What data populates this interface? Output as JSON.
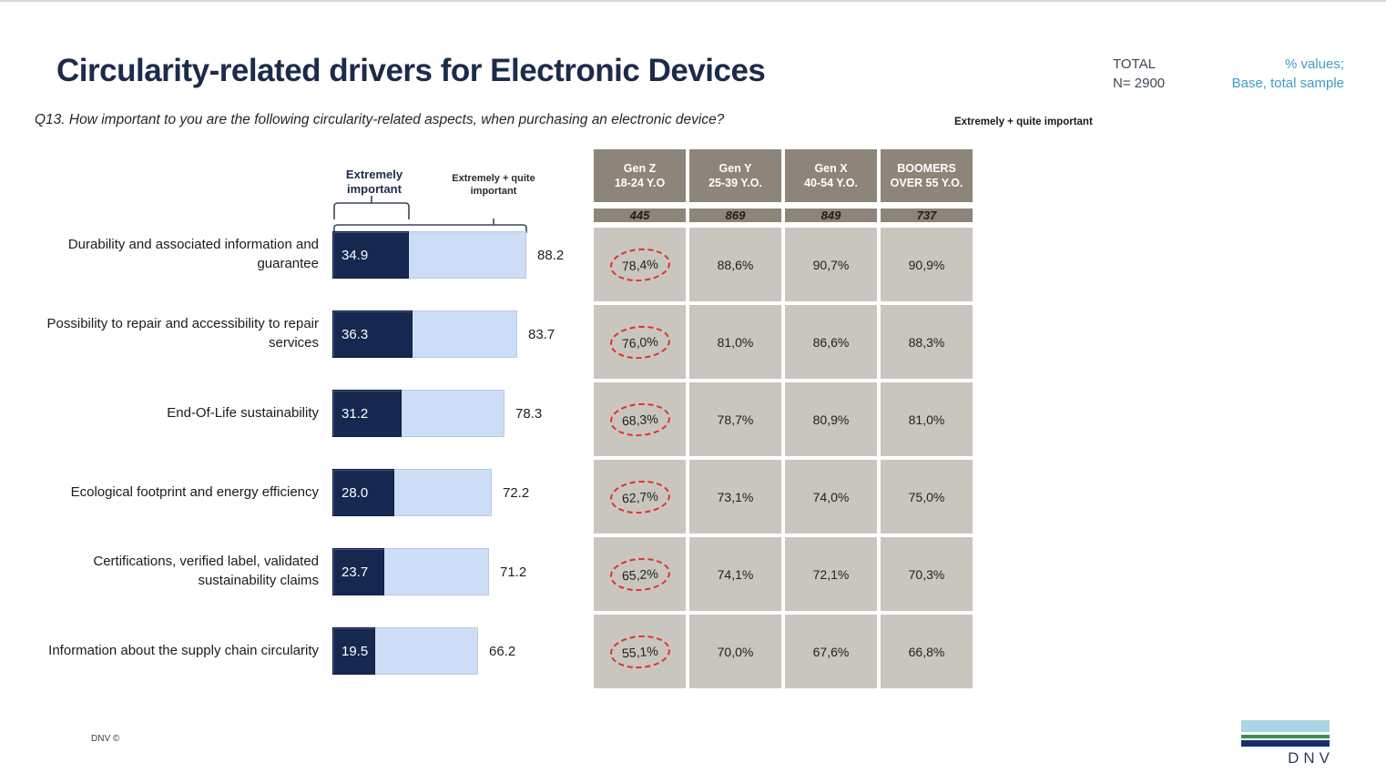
{
  "header": {
    "title": "Circularity-related drivers for Electronic Devices",
    "question": "Q13. How important to you are the following circularity-related aspects, when purchasing an electronic device?",
    "total_label": "TOTAL",
    "total_n": "N= 2900",
    "note_line1": "% values;",
    "note_line2": "Base, total sample"
  },
  "legend": {
    "extremely_label": "Extremely important",
    "extremely_quite_label": "Extremely + quite important"
  },
  "table_caption": "Extremely + quite important",
  "chart_data": {
    "type": "bar",
    "orientation": "horizontal",
    "title": "Circularity-related drivers for Electronic Devices",
    "categories": [
      "Durability and associated information and guarantee",
      "Possibility to repair and accessibility to repair services",
      "End-Of-Life sustainability",
      "Ecological footprint and energy efficiency",
      "Certifications, verified label, validated sustainability claims",
      "Information about the supply chain circularity"
    ],
    "series": [
      {
        "name": "Extremely important",
        "values": [
          34.9,
          36.3,
          31.2,
          28.0,
          23.7,
          19.5
        ],
        "display": [
          "34.9",
          "36.3",
          "31.2",
          "28.0",
          "23.7",
          "19.5"
        ],
        "color": "#162850"
      },
      {
        "name": "Extremely + quite important",
        "values": [
          88.2,
          83.7,
          78.3,
          72.2,
          71.2,
          66.2
        ],
        "display": [
          "88.2",
          "83.7",
          "78.3",
          "72.2",
          "71.2",
          "66.2"
        ],
        "color": "#cdddf6"
      }
    ],
    "xlim": [
      0,
      100
    ],
    "grid": false,
    "legend_position": "top"
  },
  "gen_table": {
    "columns": [
      {
        "name": "Gen Z",
        "age": "18-24 Y.O",
        "base": "445"
      },
      {
        "name": "Gen Y",
        "age": "25-39 Y.O.",
        "base": "869"
      },
      {
        "name": "Gen X",
        "age": "40-54 Y.O.",
        "base": "849"
      },
      {
        "name": "BOOMERS",
        "age": "OVER 55 Y.O.",
        "base": "737"
      }
    ],
    "rows": [
      [
        "78,4%",
        "88,6%",
        "90,7%",
        "90,9%"
      ],
      [
        "76,0%",
        "81,0%",
        "86,6%",
        "88,3%"
      ],
      [
        "68,3%",
        "78,7%",
        "80,9%",
        "81,0%"
      ],
      [
        "62,7%",
        "73,1%",
        "74,0%",
        "75,0%"
      ],
      [
        "65,2%",
        "74,1%",
        "72,1%",
        "70,3%"
      ],
      [
        "55,1%",
        "70,0%",
        "67,6%",
        "66,8%"
      ]
    ],
    "highlighted_column": 0
  },
  "footer": {
    "copyright": "DNV ©",
    "logo_text": "DNV"
  },
  "colors": {
    "accent_dark_bar": "#162850",
    "accent_light_bar": "#cdddf6",
    "table_header_bg": "#8d8579",
    "table_cell_bg": "#c9c6c0",
    "highlight_red": "#e03126",
    "note_blue": "#3e9cc4",
    "title_navy": "#1d2b4a",
    "logo_light_blue": "#a9d6e2",
    "logo_green": "#3e8f55",
    "logo_navy": "#16306b"
  }
}
